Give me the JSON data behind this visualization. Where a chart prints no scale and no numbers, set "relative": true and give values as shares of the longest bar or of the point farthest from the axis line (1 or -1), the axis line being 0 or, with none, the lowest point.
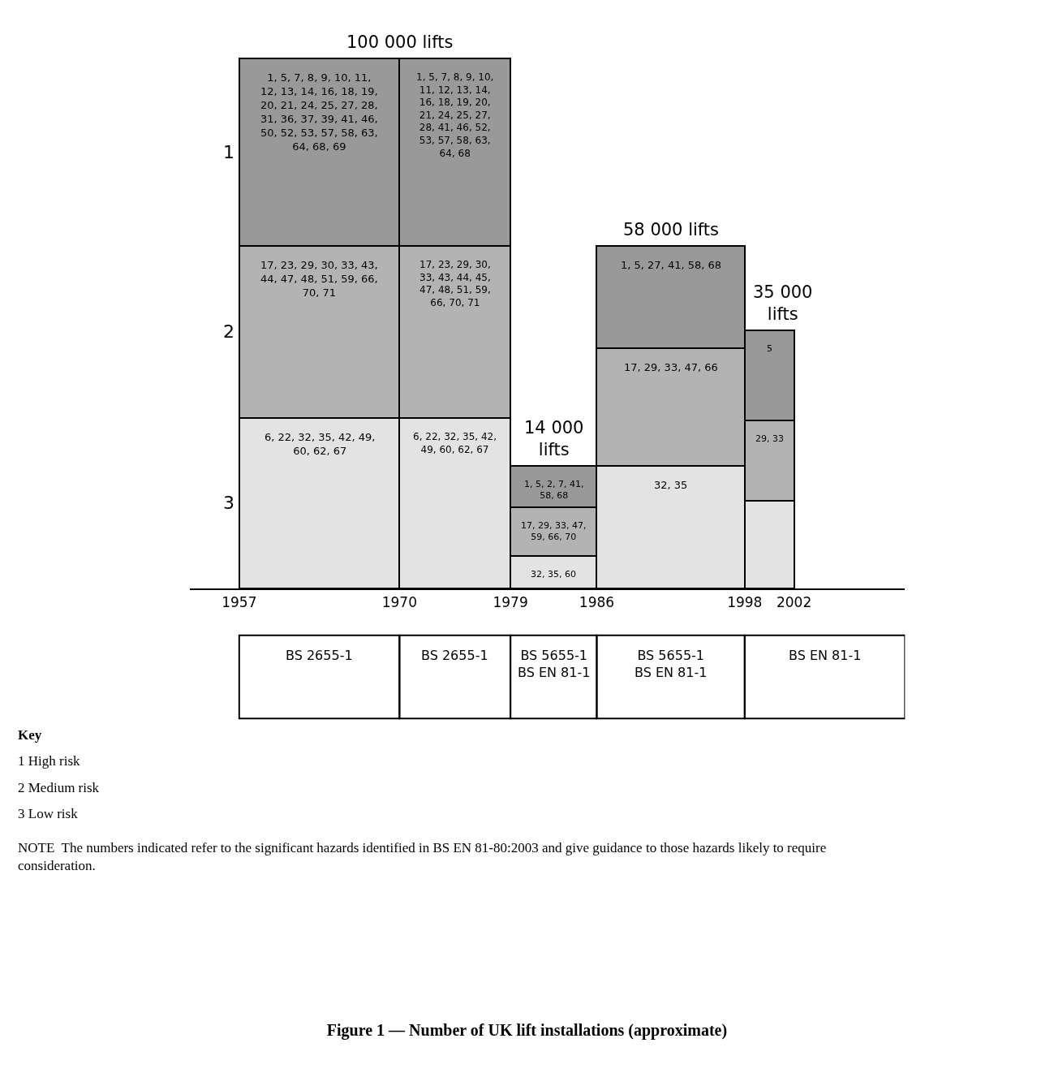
{
  "chart_data": {
    "type": "bar",
    "stacked": true,
    "relative": true,
    "title": "Figure 1 — Number of UK lift installations (approximate)",
    "x": [
      1963.5,
      1974.5,
      1982.5,
      1992,
      2000
    ],
    "xlim": [
      1953,
      2011
    ],
    "xticks": [
      1957,
      1970,
      1979,
      1986,
      1998,
      2002
    ],
    "series": [
      {
        "name": "3",
        "color": "#e3e3e3",
        "values": [
          0.322,
          0.322,
          0.062,
          0.231,
          0.166
        ]
      },
      {
        "name": "2",
        "color": "#b3b3b3",
        "values": [
          0.325,
          0.325,
          0.091,
          0.222,
          0.151
        ]
      },
      {
        "name": "1",
        "color": "#999999",
        "values": [
          0.353,
          0.353,
          0.078,
          0.194,
          0.17
        ]
      }
    ],
    "annotations": [
      {
        "text": "100 000 lifts",
        "x": 1970,
        "y": 1.0
      },
      {
        "text": "14 000 lifts",
        "x": 1982.5,
        "y": 0.231
      },
      {
        "text": "58 000 lifts",
        "x": 1992,
        "y": 0.647
      },
      {
        "text": "35 000 lifts",
        "x": 2000,
        "y": 0.487
      },
      {
        "text": "6, 22, 32, 35, 42, 49, 60, 62, 67",
        "x": 1963.5,
        "y": 0.322
      },
      {
        "text": "6, 22, 32, 35, 42, 49, 60, 62, 67",
        "x": 1974.5,
        "y": 0.322
      },
      {
        "text": "32, 35, 60",
        "x": 1982.5,
        "y": 0.062
      },
      {
        "text": "32, 35",
        "x": 1992,
        "y": 0.231
      },
      {
        "text": "17, 23, 29, 30, 33, 43, 44, 47, 48, 51, 59, 66, 70, 71",
        "x": 1963.5,
        "y": 0.647
      },
      {
        "text": "17, 23, 29, 30, 33, 43, 44, 45, 47, 48, 51, 59, 66, 70, 71",
        "x": 1974.5,
        "y": 0.647
      },
      {
        "text": "17, 29, 33, 47, 59, 66, 70",
        "x": 1982.5,
        "y": 0.153
      },
      {
        "text": "17, 29, 33, 47, 66",
        "x": 1992,
        "y": 0.453
      },
      {
        "text": "29, 33",
        "x": 2000,
        "y": 0.317
      },
      {
        "text": "1, 5, 7, 8, 9, 10, 11, 12, 13, 14, 16, 18, 19, 20, 21, 24, 25, 27, 28, 31, 36, 37, 39, 41, 46, 50, 52, 53, 57, 58, 63, 64, 68, 69",
        "x": 1963.5,
        "y": 1.0
      },
      {
        "text": "1, 5, 7, 8, 9, 10, 11, 12, 13, 14, 16, 18, 19, 20, 21, 24, 25, 27, 28, 41, 46, 52, 53, 57, 58, 63, 64, 68",
        "x": 1974.5,
        "y": 1.0
      },
      {
        "text": "1, 5, 2, 7, 41, 58, 68",
        "x": 1982.5,
        "y": 0.231
      },
      {
        "text": "1, 5, 27, 41, 58, 68",
        "x": 1992,
        "y": 0.647
      },
      {
        "text": "5",
        "x": 2000,
        "y": 0.487
      },
      "BS 2655-1",
      "BS 2655-1",
      "BS 5655-1 BS EN 81-1",
      "BS 5655-1 BS EN 81-1",
      "BS EN 81-1",
      "Key",
      "1 High risk",
      "2 Medium risk",
      "3 Low risk",
      "NOTE  The numbers indicated refer to the significant hazards identified in BS EN 81-80:2003 and give guidance to those hazards likely to require consideration."
    ],
    "legend": false
  }
}
